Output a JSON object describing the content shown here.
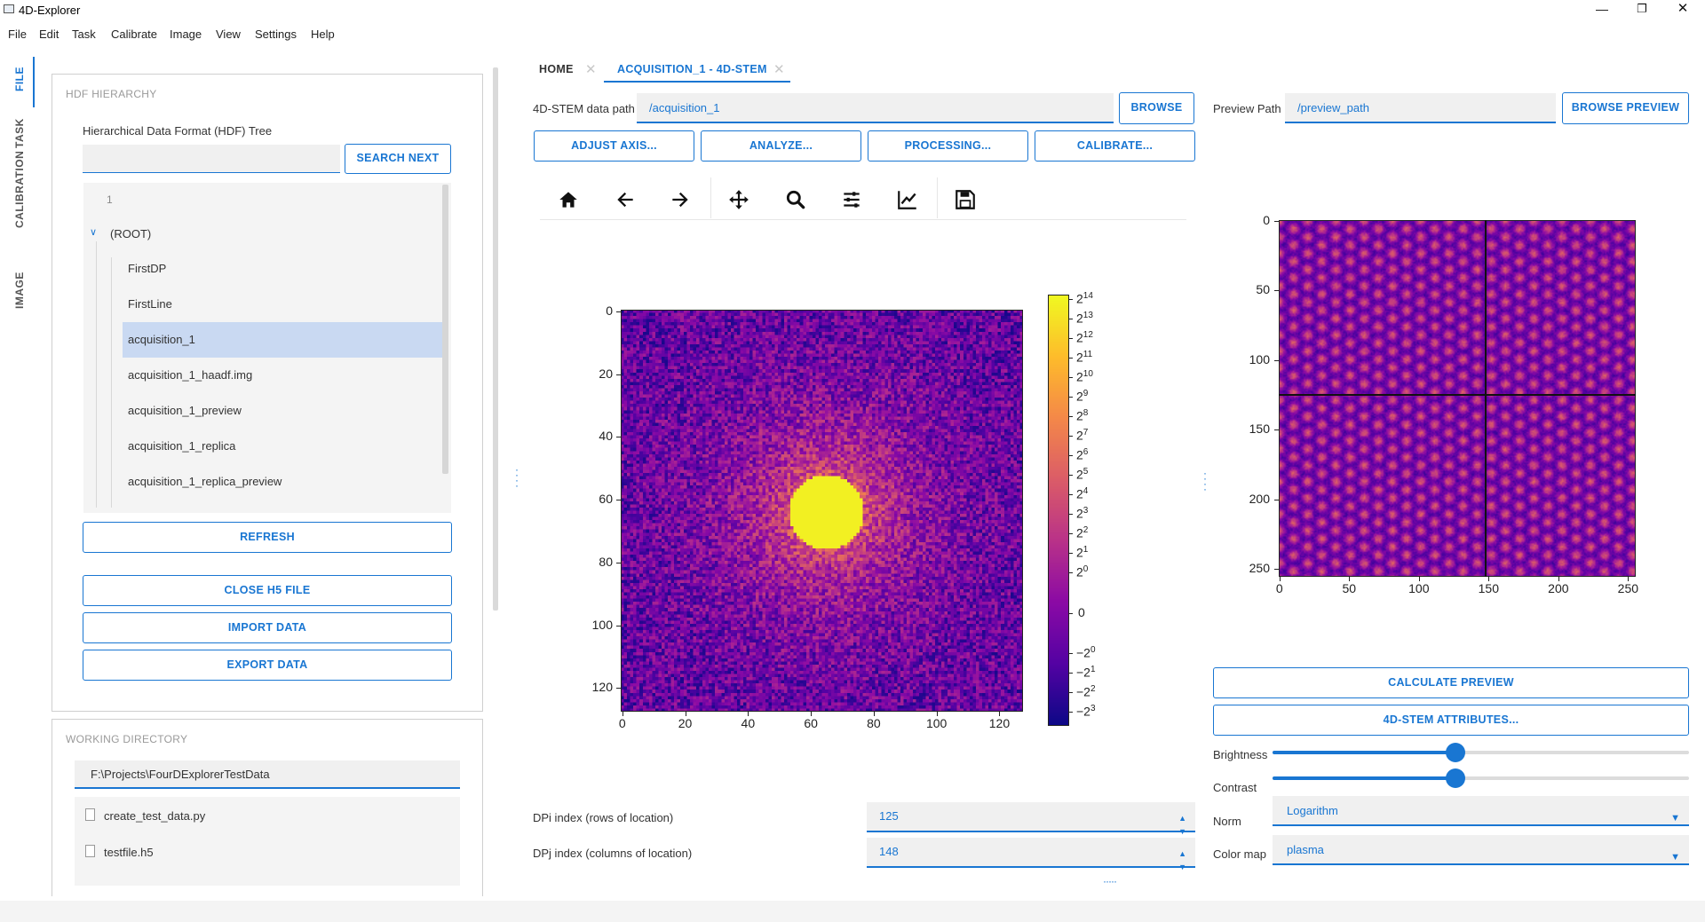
{
  "window": {
    "title": "4D-Explorer",
    "controls": [
      "minimize-icon",
      "restore-icon",
      "close-icon"
    ]
  },
  "menu": [
    "File",
    "Edit",
    "Task",
    "Calibrate",
    "Image",
    "View",
    "Settings",
    "Help"
  ],
  "side_nav": [
    "FILE",
    "TASK",
    "CALIBRATION",
    "IMAGE"
  ],
  "hdf_panel": {
    "title": "HDF HIERARCHY",
    "tree_label": "Hierarchical Data Format (HDF) Tree",
    "search_value": "",
    "search_button": "SEARCH NEXT",
    "tree_header": "1",
    "root": "(ROOT)",
    "items": [
      "FirstDP",
      "FirstLine",
      "acquisition_1",
      "acquisition_1_haadf.img",
      "acquisition_1_preview",
      "acquisition_1_replica",
      "acquisition_1_replica_preview"
    ],
    "selected": "acquisition_1",
    "refresh": "REFRESH",
    "close_h5": "CLOSE H5 FILE",
    "import_data": "IMPORT DATA",
    "export_data": "EXPORT DATA"
  },
  "working_dir": {
    "title": "WORKING DIRECTORY",
    "path": "F:\\Projects\\FourDExplorerTestData",
    "files": [
      "create_test_data.py",
      "testfile.h5"
    ]
  },
  "tabs": [
    {
      "label": "HOME",
      "active": false
    },
    {
      "label": "ACQUISITION_1 - 4D-STEM",
      "active": true
    }
  ],
  "center": {
    "path_label": "4D-STEM data path",
    "path_value": "/acquisition_1",
    "browse": "BROWSE",
    "actions": [
      "ADJUST AXIS...",
      "ANALYZE...",
      "PROCESSING...",
      "CALIBRATE..."
    ],
    "toolbar": [
      "home-icon",
      "back-arrow-icon",
      "forward-arrow-icon",
      "pan-icon",
      "zoom-icon",
      "configure-subplots-icon",
      "edit-axis-icon",
      "save-icon"
    ],
    "dpi_label": "DPi index (rows of location)",
    "dpi_value": "125",
    "dpj_label": "DPj index (columns of location)",
    "dpj_value": "148"
  },
  "right": {
    "preview_label": "Preview Path",
    "preview_value": "/preview_path",
    "browse_preview": "BROWSE PREVIEW",
    "calculate_preview": "CALCULATE PREVIEW",
    "attributes": "4D-STEM ATTRIBUTES...",
    "brightness_label": "Brightness",
    "brightness": 0.44,
    "contrast_label": "Contrast",
    "contrast": 0.44,
    "norm_label": "Norm",
    "norm_value": "Logarithm",
    "cmap_label": "Color map",
    "cmap_value": "plasma"
  },
  "dp_plot": {
    "xticks": [
      "0",
      "20",
      "40",
      "60",
      "80",
      "100",
      "120"
    ],
    "yticks": [
      "0",
      "20",
      "40",
      "60",
      "80",
      "100",
      "120"
    ],
    "colorbar_pos": [
      [
        "2",
        "14"
      ],
      [
        "2",
        "13"
      ],
      [
        "2",
        "12"
      ],
      [
        "2",
        "11"
      ],
      [
        "2",
        "10"
      ],
      [
        "2",
        "9"
      ],
      [
        "2",
        "8"
      ],
      [
        "2",
        "7"
      ],
      [
        "2",
        "6"
      ],
      [
        "2",
        "5"
      ],
      [
        "2",
        "4"
      ],
      [
        "2",
        "3"
      ],
      [
        "2",
        "2"
      ],
      [
        "2",
        "1"
      ],
      [
        "2",
        "0"
      ]
    ],
    "colorbar_zero": "0",
    "colorbar_neg": [
      [
        "−2",
        "0"
      ],
      [
        "−2",
        "1"
      ],
      [
        "−2",
        "2"
      ],
      [
        "−2",
        "3"
      ]
    ]
  },
  "preview_plot": {
    "xticks": [
      "0",
      "50",
      "100",
      "150",
      "200",
      "250"
    ],
    "yticks": [
      "0",
      "50",
      "100",
      "150",
      "200",
      "250"
    ],
    "crosshair": {
      "row": 125,
      "col": 148
    }
  }
}
